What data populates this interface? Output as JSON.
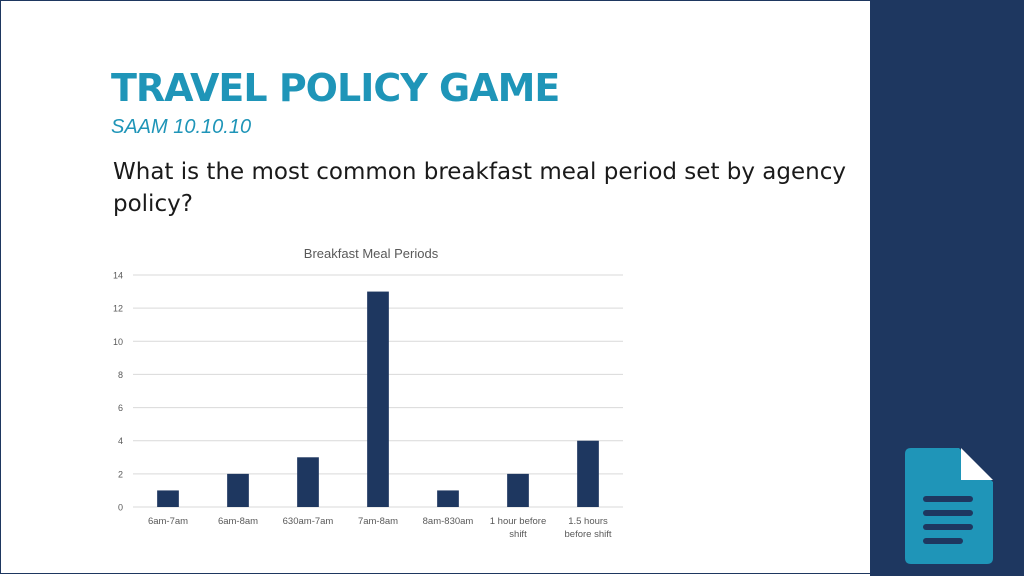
{
  "slide": {
    "title": "TRAVEL POLICY GAME",
    "subtitle": "SAAM 10.10.10",
    "question": "What is the most common breakfast meal period set by agency policy?"
  },
  "icons": {
    "document": "document-icon"
  },
  "colors": {
    "accent": "#1f95b8",
    "panel": "#1e3760",
    "bar": "#1e3760",
    "icon": "#1f95b8"
  },
  "chart_data": {
    "type": "bar",
    "title": "Breakfast Meal Periods",
    "categories": [
      "6am-7am",
      "6am-8am",
      "630am-7am",
      "7am-8am",
      "8am-830am",
      "1 hour before shift",
      "1.5 hours before shift"
    ],
    "values": [
      1,
      2,
      3,
      13,
      1,
      2,
      4
    ],
    "xlabel": "",
    "ylabel": "",
    "ylim": [
      0,
      14
    ],
    "yticks": [
      0,
      2,
      4,
      6,
      8,
      10,
      12,
      14
    ],
    "grid": true,
    "legend": "none"
  }
}
